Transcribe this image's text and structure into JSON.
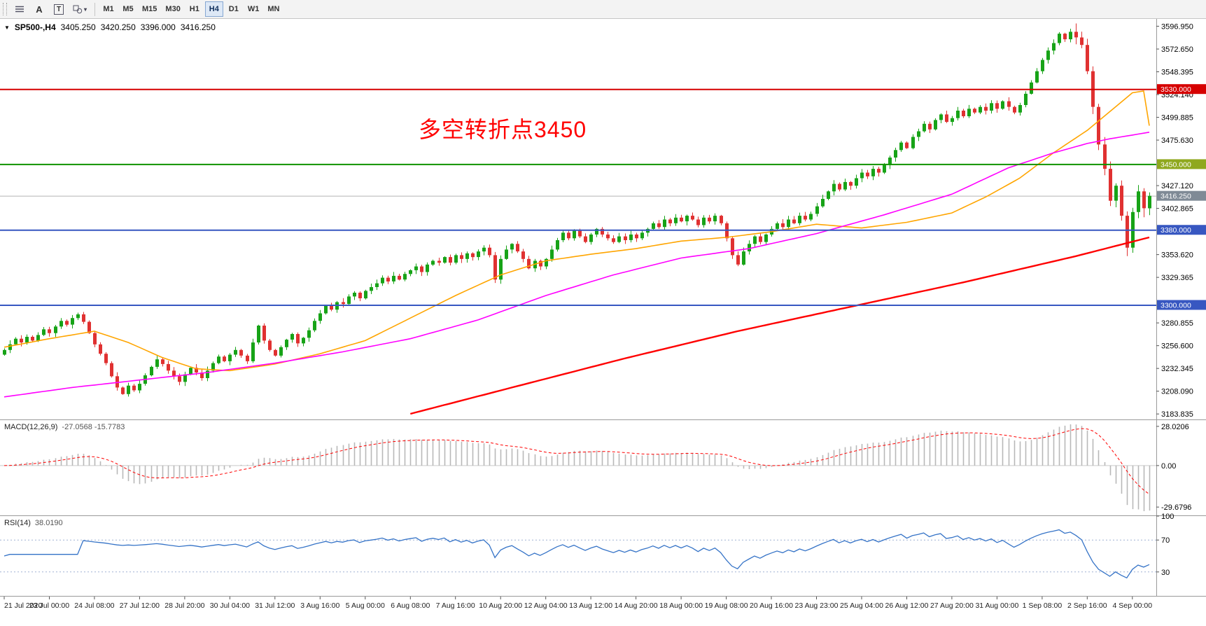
{
  "toolbar": {
    "buttons": [
      {
        "name": "grid",
        "label": ""
      },
      {
        "name": "text-label",
        "label": "A"
      },
      {
        "name": "text-box",
        "label": "T"
      },
      {
        "name": "shapes",
        "label": ""
      }
    ],
    "timeframes": [
      "M1",
      "M5",
      "M15",
      "M30",
      "H1",
      "H4",
      "D1",
      "W1",
      "MN"
    ],
    "active_timeframe": "H4"
  },
  "symbol_bar": {
    "symbol": "SP500-,H4",
    "open": "3405.250",
    "high": "3420.250",
    "low": "3396.000",
    "close": "3416.250"
  },
  "annotation": {
    "text": "多空转折点3450",
    "color": "#ff0000"
  },
  "macd": {
    "label": "MACD(12,26,9)",
    "values": "-27.0568 -15.7783",
    "ticks": [
      {
        "v": 28.0206,
        "t": "28.0206"
      },
      {
        "v": 0,
        "t": "0.00"
      },
      {
        "v": -29.6796,
        "t": "-29.6796"
      }
    ]
  },
  "rsi": {
    "label": "RSI(14)",
    "value": "38.0190",
    "levels": [
      70,
      30
    ],
    "ticks": [
      {
        "v": 100,
        "t": "100"
      },
      {
        "v": 70,
        "t": "70"
      },
      {
        "v": 30,
        "t": "30"
      }
    ]
  },
  "colors": {
    "up": "#17a317",
    "down": "#e03131",
    "macd_hist": "#b8b8b8",
    "macd_signal": "#ff0000",
    "rsi_line": "#3573c7",
    "annotation": "#ff0000"
  },
  "chart_data": {
    "type": "candlestick",
    "symbol": "SP500-",
    "timeframe": "H4",
    "ohlc_display": {
      "open": 3405.25,
      "high": 3420.25,
      "low": 3396.0,
      "close": 3416.25
    },
    "price_range": {
      "min": 3178,
      "max": 3604
    },
    "bid": {
      "price": 3416.25,
      "label": "3416.250",
      "label_bg": "#7f8a96"
    },
    "hlines": [
      {
        "price": 3530.0,
        "label": "3530.000",
        "color": "#d60000",
        "label_bg": "#d60000"
      },
      {
        "price": 3450.0,
        "label": "3450.000",
        "color": "#0f9200",
        "label_bg": "#8fa81e"
      },
      {
        "price": 3380.0,
        "label": "3380.000",
        "color": "#3757c1",
        "label_bg": "#3757c1"
      },
      {
        "price": 3300.0,
        "label": "3300.000",
        "color": "#3757c1",
        "label_bg": "#3757c1"
      }
    ],
    "price_ticks": [
      "3596.950",
      "3572.650",
      "3548.395",
      "3524.140",
      "3499.885",
      "3475.630",
      "3427.120",
      "3402.865",
      "3353.620",
      "3329.365",
      "3280.855",
      "3256.600",
      "3232.345",
      "3208.090",
      "3183.835"
    ],
    "x_labels": [
      "21 Jul 2020",
      "23 Jul 00:00",
      "24 Jul 08:00",
      "27 Jul 12:00",
      "28 Jul 20:00",
      "30 Jul 04:00",
      "31 Jul 12:00",
      "3 Aug 16:00",
      "5 Aug 00:00",
      "6 Aug 08:00",
      "7 Aug 16:00",
      "10 Aug 20:00",
      "12 Aug 04:00",
      "13 Aug 12:00",
      "14 Aug 20:00",
      "18 Aug 00:00",
      "19 Aug 08:00",
      "20 Aug 16:00",
      "23 Aug 23:00",
      "25 Aug 04:00",
      "26 Aug 12:00",
      "27 Aug 20:00",
      "31 Aug 00:00",
      "1 Sep 08:00",
      "2 Sep 16:00",
      "4 Sep 00:00"
    ],
    "closes": [
      3252,
      3258,
      3264,
      3260,
      3266,
      3262,
      3268,
      3274,
      3270,
      3277,
      3283,
      3279,
      3286,
      3290,
      3282,
      3270,
      3258,
      3248,
      3238,
      3224,
      3212,
      3205,
      3214,
      3209,
      3216,
      3225,
      3234,
      3242,
      3237,
      3230,
      3224,
      3218,
      3226,
      3233,
      3228,
      3222,
      3230,
      3238,
      3245,
      3240,
      3247,
      3252,
      3246,
      3240,
      3260,
      3278,
      3262,
      3252,
      3246,
      3255,
      3263,
      3269,
      3259,
      3265,
      3273,
      3283,
      3291,
      3299,
      3295,
      3303,
      3301,
      3309,
      3313,
      3307,
      3315,
      3319,
      3323,
      3329,
      3325,
      3331,
      3327,
      3333,
      3337,
      3341,
      3335,
      3343,
      3347,
      3345,
      3351,
      3345,
      3353,
      3349,
      3355,
      3351,
      3357,
      3361,
      3353,
      3327,
      3349,
      3359,
      3365,
      3357,
      3349,
      3339,
      3347,
      3341,
      3349,
      3359,
      3369,
      3377,
      3371,
      3379,
      3373,
      3367,
      3375,
      3381,
      3375,
      3371,
      3367,
      3373,
      3369,
      3375,
      3371,
      3377,
      3381,
      3387,
      3383,
      3391,
      3387,
      3393,
      3389,
      3395,
      3391,
      3385,
      3393,
      3389,
      3395,
      3387,
      3371,
      3353,
      3343,
      3357,
      3365,
      3373,
      3367,
      3375,
      3381,
      3387,
      3383,
      3391,
      3387,
      3395,
      3391,
      3397,
      3405,
      3413,
      3421,
      3429,
      3423,
      3431,
      3427,
      3435,
      3441,
      3437,
      3445,
      3441,
      3449,
      3457,
      3465,
      3473,
      3467,
      3479,
      3485,
      3493,
      3487,
      3497,
      3503,
      3495,
      3499,
      3507,
      3501,
      3509,
      3505,
      3511,
      3507,
      3515,
      3509,
      3517,
      3511,
      3505,
      3513,
      3525,
      3537,
      3549,
      3561,
      3571,
      3579,
      3589,
      3583,
      3591,
      3585,
      3577,
      3549,
      3511,
      3471,
      3445,
      3411,
      3427,
      3395,
      3361,
      3399,
      3421,
      3403,
      3416.25
    ],
    "ma_lines": [
      {
        "name": "ma-fast",
        "color": "#ffa500",
        "points": [
          [
            0,
            3255
          ],
          [
            8,
            3264
          ],
          [
            16,
            3272
          ],
          [
            22,
            3260
          ],
          [
            28,
            3244
          ],
          [
            34,
            3232
          ],
          [
            40,
            3230
          ],
          [
            48,
            3237
          ],
          [
            56,
            3248
          ],
          [
            64,
            3262
          ],
          [
            72,
            3286
          ],
          [
            80,
            3310
          ],
          [
            88,
            3332
          ],
          [
            96,
            3347
          ],
          [
            104,
            3354
          ],
          [
            112,
            3360
          ],
          [
            120,
            3368
          ],
          [
            128,
            3372
          ],
          [
            136,
            3378
          ],
          [
            144,
            3386
          ],
          [
            152,
            3382
          ],
          [
            160,
            3388
          ],
          [
            168,
            3398
          ],
          [
            174,
            3415
          ],
          [
            180,
            3435
          ],
          [
            186,
            3462
          ],
          [
            192,
            3486
          ],
          [
            196,
            3506
          ],
          [
            200,
            3526
          ],
          [
            202,
            3528
          ],
          [
            203,
            3491
          ]
        ]
      },
      {
        "name": "ma-mid",
        "color": "#ff00ff",
        "points": [
          [
            0,
            3202
          ],
          [
            12,
            3212
          ],
          [
            24,
            3220
          ],
          [
            36,
            3228
          ],
          [
            48,
            3238
          ],
          [
            60,
            3250
          ],
          [
            72,
            3264
          ],
          [
            84,
            3284
          ],
          [
            96,
            3310
          ],
          [
            108,
            3332
          ],
          [
            120,
            3350
          ],
          [
            132,
            3360
          ],
          [
            144,
            3376
          ],
          [
            156,
            3396
          ],
          [
            168,
            3418
          ],
          [
            178,
            3446
          ],
          [
            186,
            3462
          ],
          [
            192,
            3472
          ],
          [
            196,
            3477
          ],
          [
            200,
            3481
          ],
          [
            203,
            3484
          ]
        ]
      },
      {
        "name": "ma-slow",
        "color": "#ff0000",
        "points": [
          [
            72,
            3184
          ],
          [
            90,
            3212
          ],
          [
            110,
            3243
          ],
          [
            130,
            3272
          ],
          [
            150,
            3298
          ],
          [
            170,
            3324
          ],
          [
            190,
            3352
          ],
          [
            203,
            3372
          ]
        ]
      }
    ]
  }
}
